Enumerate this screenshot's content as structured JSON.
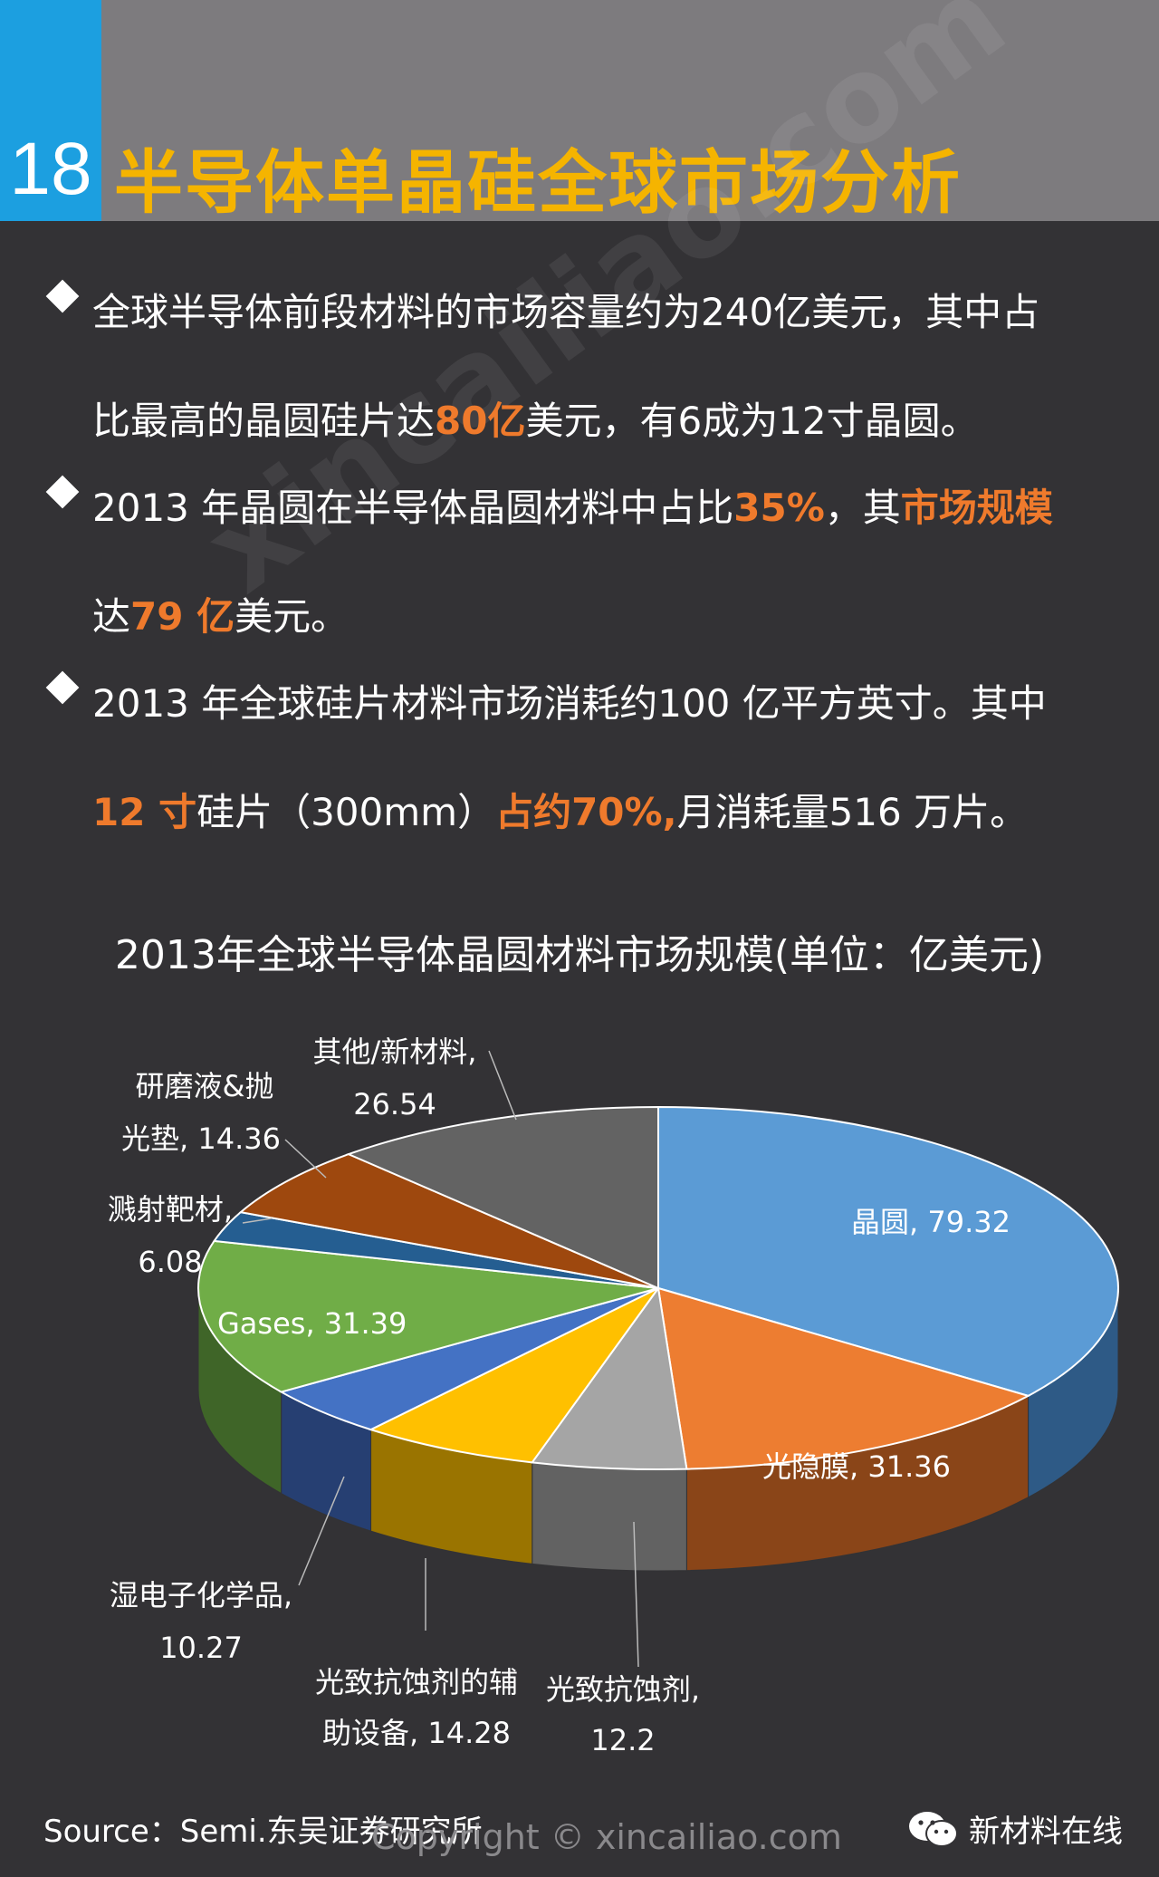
{
  "header": {
    "number": "18",
    "title": "半导体单晶硅全球市场分析"
  },
  "bullets": [
    {
      "line1": [
        {
          "t": "全球半导体前段材料的市场容量约为240亿美元，其中占",
          "h": false
        }
      ],
      "line2": [
        {
          "t": "比最高的晶圆硅片达",
          "h": false
        },
        {
          "t": "80亿",
          "h": true
        },
        {
          "t": "美元，有6成为12寸晶圆。",
          "h": false
        }
      ]
    },
    {
      "line1": [
        {
          "t": "2013 年晶圆在半导体晶圆材料中占比",
          "h": false
        },
        {
          "t": "35%",
          "h": true
        },
        {
          "t": "，其",
          "h": false
        },
        {
          "t": "市场规模",
          "h": true
        }
      ],
      "line2": [
        {
          "t": "达",
          "h": false
        },
        {
          "t": "79 亿",
          "h": true
        },
        {
          "t": "美元。",
          "h": false
        }
      ]
    },
    {
      "line1": [
        {
          "t": "2013 年全球硅片材料市场消耗约100 亿平方英寸。其中",
          "h": false
        }
      ],
      "line2": [
        {
          "t": "12 寸",
          "h": true
        },
        {
          "t": "硅片（300mm）",
          "h": false
        },
        {
          "t": "占约70%,",
          "h": true
        },
        {
          "t": "月消耗量516 万片。",
          "h": false
        }
      ]
    }
  ],
  "chart_data": {
    "type": "pie",
    "title": "2013年全球半导体晶圆材料市场规模(单位：亿美元)",
    "slices": [
      {
        "label": "晶圆, 79.32",
        "name": "晶圆",
        "value": 79.32,
        "color": "#5b9bd5",
        "side": "#2e5a86"
      },
      {
        "label": "光隐膜, 31.36",
        "name": "光隐膜",
        "value": 31.36,
        "color": "#ed7d31",
        "side": "#8a4518"
      },
      {
        "label": "光致抗蚀剂, 12.2",
        "name": "光致抗蚀剂",
        "value": 12.2,
        "color": "#a5a5a5",
        "side": "#626262"
      },
      {
        "label": "光致抗蚀剂的辅助设备, 14.28",
        "name": "光致抗蚀剂的辅助设备",
        "value": 14.28,
        "color": "#ffc000",
        "side": "#9a7400"
      },
      {
        "label": "湿电子化学品, 10.27",
        "name": "湿电子化学品",
        "value": 10.27,
        "color": "#4472c4",
        "side": "#263f72"
      },
      {
        "label": "Gases, 31.39",
        "name": "Gases",
        "value": 31.39,
        "color": "#70ad47",
        "side": "#3f6528"
      },
      {
        "label": "溅射靶材, 6.08",
        "name": "溅射靶材",
        "value": 6.08,
        "color": "#255e91",
        "side": "#143654"
      },
      {
        "label": "研磨液&抛光垫, 14.36",
        "name": "研磨液&抛光垫",
        "value": 14.36,
        "color": "#9e480e",
        "side": "#5a2808"
      },
      {
        "label": "其他/新材料, 26.54",
        "name": "其他/新材料",
        "value": 26.54,
        "color": "#636363",
        "side": "#3a3a3a"
      }
    ],
    "labels": {
      "jingyuan": [
        "晶圆, 79.32"
      ],
      "guangyinmo": [
        "光隐膜, 31.36"
      ],
      "kangshiji": [
        "光致抗蚀剂,",
        "12.2"
      ],
      "fuzhu": [
        "光致抗蚀剂的辅",
        "助设备, 14.28"
      ],
      "shidianzi": [
        "湿电子化学品,",
        "10.27"
      ],
      "gases": [
        "Gases, 31.39"
      ],
      "bacai": [
        "溅射靶材,",
        "6.08"
      ],
      "yanmo": [
        "研磨液&抛",
        "光垫, 14.36"
      ],
      "qita": [
        "其他/新材料,",
        "26.54"
      ]
    }
  },
  "footer": {
    "source": "Source：Semi.东吴证券研究所",
    "copyright": "Copyright © xincailiao.com",
    "brand": "新材料在线"
  },
  "watermark": "xincailiao.com"
}
